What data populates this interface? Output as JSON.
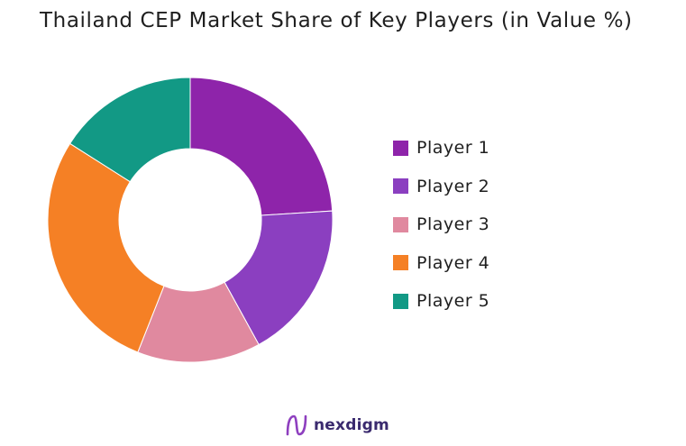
{
  "chart_data": {
    "type": "pie",
    "subtype": "donut",
    "title": "Thailand CEP Market Share of Key Players (in Value %)",
    "categories": [
      "Player 1",
      "Player 2",
      "Player 3",
      "Player 4",
      "Player 5"
    ],
    "values": [
      24,
      18,
      14,
      28,
      16
    ],
    "unit": "%",
    "colors": [
      "#8e24aa",
      "#8b3fc0",
      "#e0899f",
      "#f58025",
      "#129985"
    ],
    "legend_position": "right"
  },
  "brand": {
    "name": "nexdigm",
    "icon": "nexdigm-logo-mark"
  }
}
